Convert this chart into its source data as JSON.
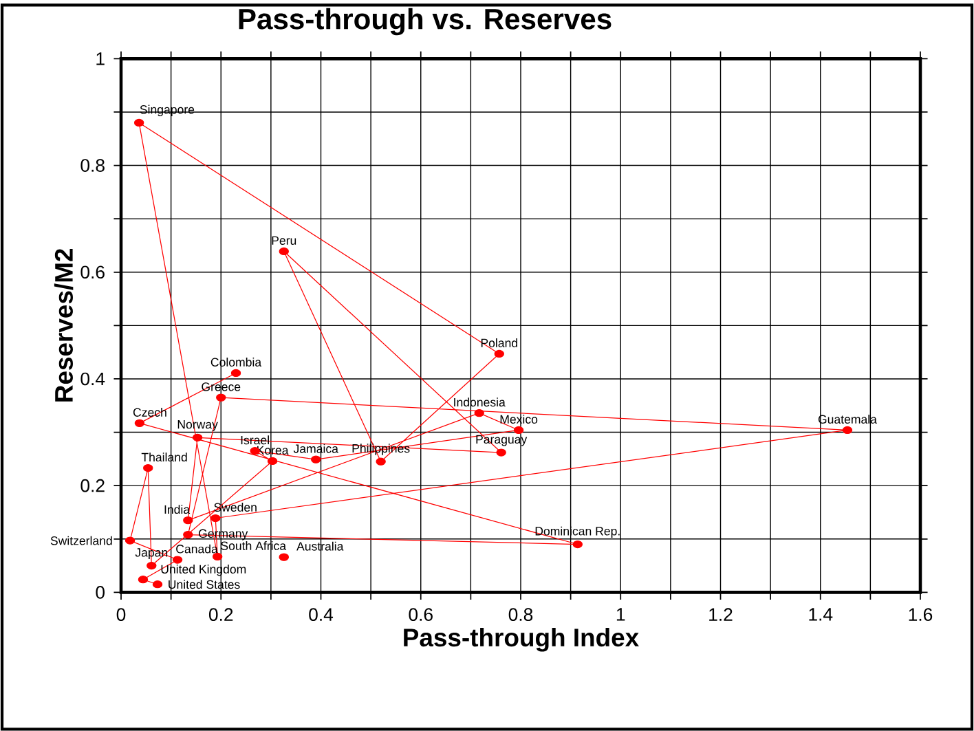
{
  "chart_data": {
    "type": "line",
    "title": "Pass-through vs. Reserves",
    "xlabel": "Pass-through Index",
    "ylabel": "Reserves/M2",
    "xlim": [
      0,
      1.6
    ],
    "ylim": [
      0,
      1
    ],
    "xticks": [
      0,
      {
        "value": 0.1,
        "label": null
      },
      0.2,
      {
        "value": 0.3,
        "label": null
      },
      0.4,
      {
        "value": 0.5,
        "label": null
      },
      0.6,
      {
        "value": 0.7,
        "label": null
      },
      0.8,
      {
        "value": 0.9,
        "label": null
      },
      1,
      {
        "value": 1.1,
        "label": null
      },
      1.2,
      {
        "value": 1.3,
        "label": null
      },
      1.4,
      {
        "value": 1.5,
        "label": null
      },
      1.6
    ],
    "yticks": [
      0,
      {
        "value": 0.1,
        "label": null
      },
      0.2,
      {
        "value": 0.3,
        "label": null
      },
      0.4,
      {
        "value": 0.5,
        "label": null
      },
      0.6,
      {
        "value": 0.7,
        "label": null
      },
      0.8,
      {
        "value": 0.9,
        "label": null
      },
      1
    ],
    "grid": true,
    "marker": "circle",
    "series": [
      {
        "color": "#ff0000",
        "line_style": "solid",
        "x": [
          0.23,
          0.037,
          0.914,
          0.134,
          0.2,
          1.454,
          0.189,
          0.193,
          0.036,
          0.757,
          0.52,
          0.326,
          0.761,
          0.153,
          0.134,
          0.717,
          0.796,
          0.39,
          0.268,
          0.303,
          0.061,
          0.054,
          0.018,
          0.113,
          0.044,
          0.073
        ],
        "values": [
          0.411,
          0.317,
          0.09,
          0.108,
          0.365,
          0.304,
          0.139,
          0.067,
          0.88,
          0.447,
          0.245,
          0.639,
          0.262,
          0.29,
          0.135,
          0.336,
          0.304,
          0.249,
          0.265,
          0.246,
          0.05,
          0.233,
          0.097,
          0.061,
          0.024,
          0.015
        ]
      },
      {
        "type": "scatter",
        "color": "#ff0000",
        "x": [
          0.326
        ],
        "values": [
          0.066
        ]
      }
    ],
    "annotations": [
      {
        "text": "Singapore",
        "x": 0.036,
        "y": 0.88
      },
      {
        "text": "Peru",
        "x": 0.326,
        "y": 0.639
      },
      {
        "text": "Poland",
        "x": 0.757,
        "y": 0.447
      },
      {
        "text": "Colombia",
        "x": 0.23,
        "y": 0.411
      },
      {
        "text": "Greece",
        "x": 0.2,
        "y": 0.365
      },
      {
        "text": "Czech",
        "x": 0.037,
        "y": 0.317
      },
      {
        "text": "Indonesia",
        "x": 0.717,
        "y": 0.336
      },
      {
        "text": "Mexico",
        "x": 0.796,
        "y": 0.304
      },
      {
        "text": "Guatemala",
        "x": 1.454,
        "y": 0.304
      },
      {
        "text": "Norway",
        "x": 0.153,
        "y": 0.29
      },
      {
        "text": "Israel",
        "x": 0.268,
        "y": 0.265
      },
      {
        "text": "Korea",
        "x": 0.303,
        "y": 0.246
      },
      {
        "text": "Jamaica",
        "x": 0.39,
        "y": 0.249
      },
      {
        "text": "Philippines",
        "x": 0.52,
        "y": 0.245
      },
      {
        "text": "Paraguay",
        "x": 0.761,
        "y": 0.262
      },
      {
        "text": "Thailand",
        "x": 0.054,
        "y": 0.233
      },
      {
        "text": "India",
        "x": 0.134,
        "y": 0.135
      },
      {
        "text": "Sweden",
        "x": 0.189,
        "y": 0.139
      },
      {
        "text": "Germany",
        "x": 0.134,
        "y": 0.108
      },
      {
        "text": "Switzerland",
        "x": 0.018,
        "y": 0.097
      },
      {
        "text": "Dominican Rep.",
        "x": 0.914,
        "y": 0.09
      },
      {
        "text": "Canada",
        "x": 0.113,
        "y": 0.061
      },
      {
        "text": "South Africa",
        "x": 0.193,
        "y": 0.067
      },
      {
        "text": "Australia",
        "x": 0.326,
        "y": 0.066
      },
      {
        "text": "Japan",
        "x": 0.061,
        "y": 0.05
      },
      {
        "text": "United Kingdom",
        "x": 0.044,
        "y": 0.024
      },
      {
        "text": "United States",
        "x": 0.073,
        "y": 0.015
      }
    ]
  }
}
